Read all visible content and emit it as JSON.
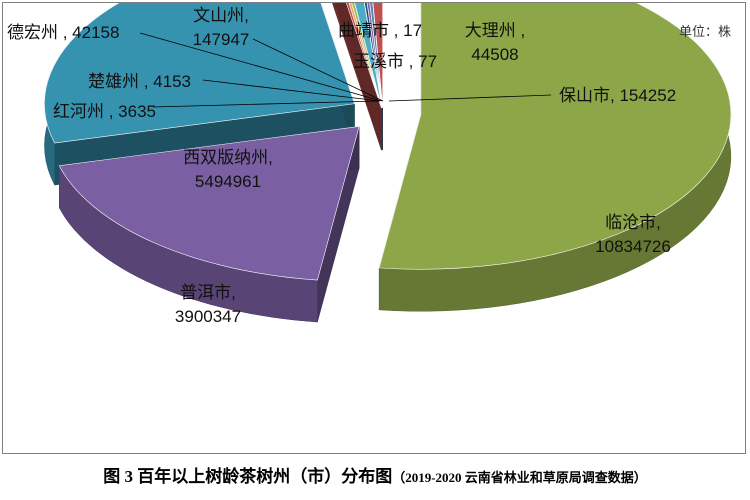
{
  "chart_data": {
    "type": "pie",
    "unit_label": "单位：株",
    "slices": [
      {
        "name": "临沧市",
        "value": 10834726,
        "color": "#8da647",
        "label": "临沧市,",
        "value_label": "10834726"
      },
      {
        "name": "普洱市",
        "value": 3900347,
        "color": "#7a5fa3",
        "label": "普洱市,",
        "value_label": "3900347"
      },
      {
        "name": "西双版纳州",
        "value": 5494961,
        "color": "#3593b0",
        "label": "西双版纳州,",
        "value_label": "5494961"
      },
      {
        "name": "红河州",
        "value": 3635,
        "color": "#c0504d",
        "label": "红河州 , 3635"
      },
      {
        "name": "楚雄州",
        "value": 4153,
        "color": "#f4a35b",
        "label": "楚雄州 , 4153"
      },
      {
        "name": "德宏州",
        "value": 42158,
        "color": "#9bbb59",
        "label": "德宏州 , 42158"
      },
      {
        "name": "文山州",
        "value": 147947,
        "color": "#4bacc6",
        "label": "文山州,",
        "value_label": "147947"
      },
      {
        "name": "曲靖市",
        "value": 17,
        "color": "#2c4d75",
        "label": "曲靖市 , 17"
      },
      {
        "name": "玉溪市",
        "value": 77,
        "color": "#8064a2",
        "label": "玉溪市 , 77"
      },
      {
        "name": "大理州",
        "value": 44508,
        "color": "#4f81bd",
        "label": "大理州 ,",
        "value_label": "44508"
      },
      {
        "name": "保山市",
        "value": 154252,
        "color": "#c0504d",
        "label": "保山市, 154252"
      }
    ]
  },
  "caption": {
    "main": "图 3  百年以上树龄茶树州（市）分布图",
    "sub": "（2019-2020 云南省林业和草原局调查数据）"
  }
}
